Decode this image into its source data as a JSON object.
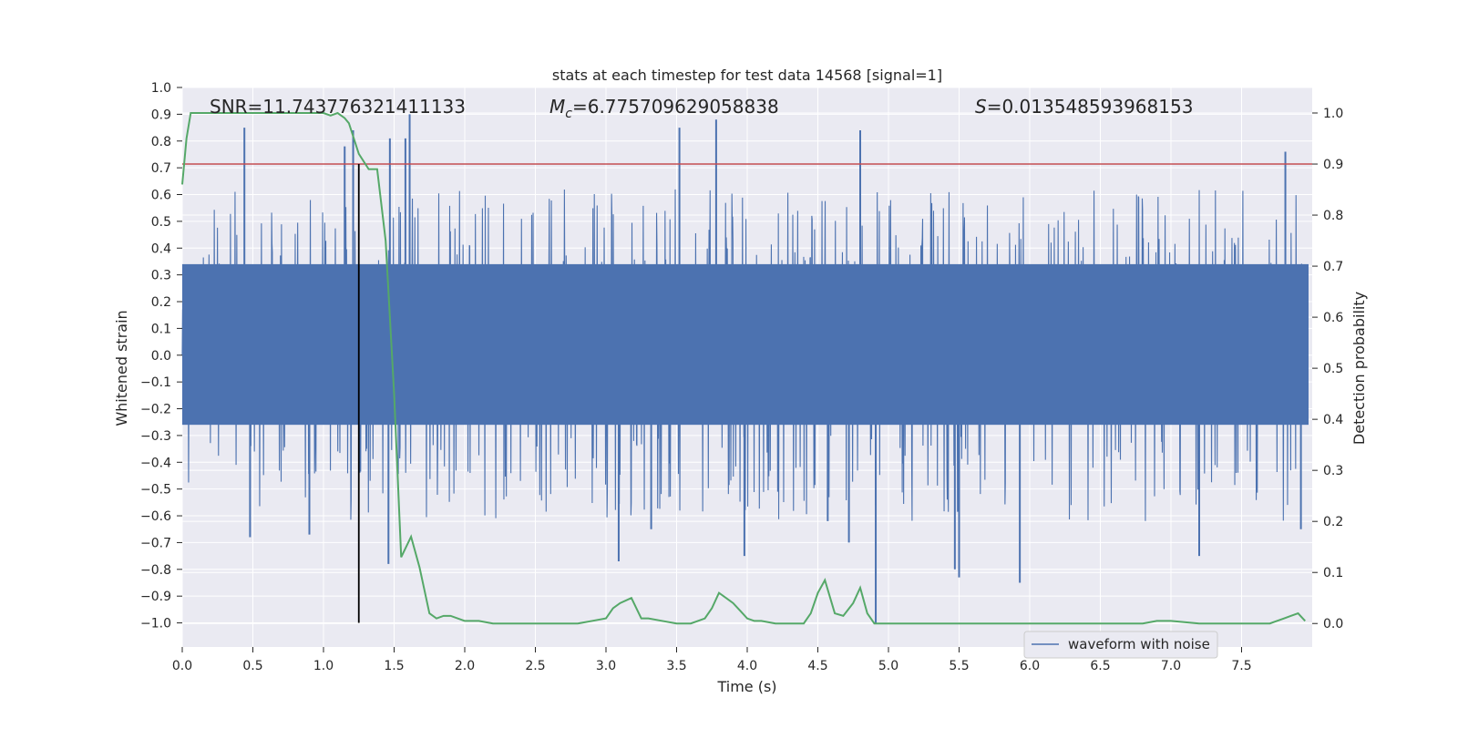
{
  "chart_data": {
    "type": "line",
    "title": "stats at each timestep for test data 14568 [signal=1]",
    "xlabel": "Time (s)",
    "ylabel": "Whitened strain",
    "y2label": "Detection probability",
    "xlim": [
      0.0,
      8.0
    ],
    "ylim": [
      -1.09,
      1.0
    ],
    "y2lim": [
      -0.046,
      1.05
    ],
    "x_ticks": [
      "0.0",
      "0.5",
      "1.0",
      "1.5",
      "2.0",
      "2.5",
      "3.0",
      "3.5",
      "4.0",
      "4.5",
      "5.0",
      "5.5",
      "6.0",
      "6.5",
      "7.0",
      "7.5"
    ],
    "y_ticks": [
      "1.0",
      "0.9",
      "0.8",
      "0.7",
      "0.6",
      "0.5",
      "0.4",
      "0.3",
      "0.2",
      "0.1",
      "0.0",
      "−0.1",
      "−0.2",
      "−0.3",
      "−0.4",
      "−0.5",
      "−0.6",
      "−0.7",
      "−0.8",
      "−0.9",
      "−1.0"
    ],
    "y2_ticks": [
      "1.0",
      "0.9",
      "0.8",
      "0.7",
      "0.6",
      "0.5",
      "0.4",
      "0.3",
      "0.2",
      "0.1",
      "0.0"
    ],
    "grid": true,
    "legend_placement": "lower-right",
    "annotations": {
      "snr": "SNR=11.743776321411133",
      "mc_symbol": "M",
      "mc_sub": "c",
      "mc_value": "=6.775709629058838",
      "s_symbol": "S",
      "s_value": "=0.013548593968153"
    },
    "series": [
      {
        "name": "waveform with noise",
        "color": "#4c72b0",
        "kind": "noise-strain",
        "core_band": [
          -0.26,
          0.34
        ],
        "spikes": [
          {
            "x": 0.44,
            "y": 0.85
          },
          {
            "x": 1.15,
            "y": 0.78
          },
          {
            "x": 1.21,
            "y": 0.84
          },
          {
            "x": 1.47,
            "y": 0.81
          },
          {
            "x": 1.58,
            "y": 0.81
          },
          {
            "x": 1.61,
            "y": 0.9
          },
          {
            "x": 3.52,
            "y": 0.85
          },
          {
            "x": 3.78,
            "y": 0.88
          },
          {
            "x": 4.8,
            "y": 0.84
          },
          {
            "x": 7.81,
            "y": 0.76
          },
          {
            "x": 0.48,
            "y": -0.68
          },
          {
            "x": 0.9,
            "y": -0.67
          },
          {
            "x": 1.46,
            "y": -0.78
          },
          {
            "x": 3.09,
            "y": -0.77
          },
          {
            "x": 3.98,
            "y": -0.75
          },
          {
            "x": 4.91,
            "y": -1.0
          },
          {
            "x": 5.47,
            "y": -0.8
          },
          {
            "x": 5.5,
            "y": -0.83
          },
          {
            "x": 5.93,
            "y": -0.85
          },
          {
            "x": 7.2,
            "y": -0.75
          },
          {
            "x": 7.92,
            "y": -0.65
          },
          {
            "x": 3.32,
            "y": -0.65
          },
          {
            "x": 4.57,
            "y": -0.62
          },
          {
            "x": 4.72,
            "y": -0.7
          }
        ]
      },
      {
        "name": "",
        "color": "#55a868",
        "kind": "detection-probability",
        "axis": "right",
        "x": [
          0.0,
          0.03,
          0.06,
          0.1,
          0.15,
          0.2,
          0.3,
          0.4,
          0.5,
          0.6,
          0.7,
          0.8,
          0.9,
          1.0,
          1.05,
          1.1,
          1.15,
          1.18,
          1.25,
          1.32,
          1.38,
          1.44,
          1.5,
          1.55,
          1.62,
          1.68,
          1.75,
          1.8,
          1.85,
          1.9,
          2.0,
          2.1,
          2.2,
          2.4,
          2.6,
          2.8,
          2.9,
          3.0,
          3.05,
          3.1,
          3.18,
          3.25,
          3.3,
          3.4,
          3.5,
          3.6,
          3.7,
          3.75,
          3.8,
          3.85,
          3.9,
          3.95,
          4.0,
          4.05,
          4.1,
          4.2,
          4.3,
          4.4,
          4.45,
          4.5,
          4.55,
          4.62,
          4.68,
          4.75,
          4.8,
          4.85,
          4.9,
          5.0,
          5.2,
          5.5,
          6.0,
          6.5,
          6.8,
          6.9,
          7.0,
          7.2,
          7.5,
          7.7,
          7.8,
          7.85,
          7.9,
          7.95
        ],
        "y": [
          0.86,
          0.95,
          1.0,
          1.0,
          1.0,
          1.0,
          1.0,
          1.0,
          1.0,
          1.0,
          1.0,
          1.0,
          1.0,
          1.0,
          0.995,
          1.0,
          0.99,
          0.98,
          0.92,
          0.89,
          0.89,
          0.75,
          0.45,
          0.13,
          0.17,
          0.11,
          0.02,
          0.01,
          0.015,
          0.015,
          0.005,
          0.005,
          0.0,
          0.0,
          0.0,
          0.0,
          0.005,
          0.01,
          0.03,
          0.04,
          0.05,
          0.01,
          0.01,
          0.005,
          0.0,
          0.0,
          0.01,
          0.03,
          0.06,
          0.05,
          0.04,
          0.025,
          0.01,
          0.005,
          0.005,
          0.0,
          0.0,
          0.0,
          0.02,
          0.06,
          0.085,
          0.02,
          0.015,
          0.04,
          0.07,
          0.02,
          0.0,
          0.0,
          0.0,
          0.0,
          0.0,
          0.0,
          0.0,
          0.005,
          0.005,
          0.0,
          0.0,
          0.0,
          0.01,
          0.015,
          0.02,
          0.005
        ]
      }
    ],
    "threshold": {
      "color": "#c44e52",
      "y2": 0.9
    },
    "event_marker": {
      "color": "#000000",
      "x": 1.25,
      "y_from": -1.0,
      "y_to": 0.9
    }
  }
}
